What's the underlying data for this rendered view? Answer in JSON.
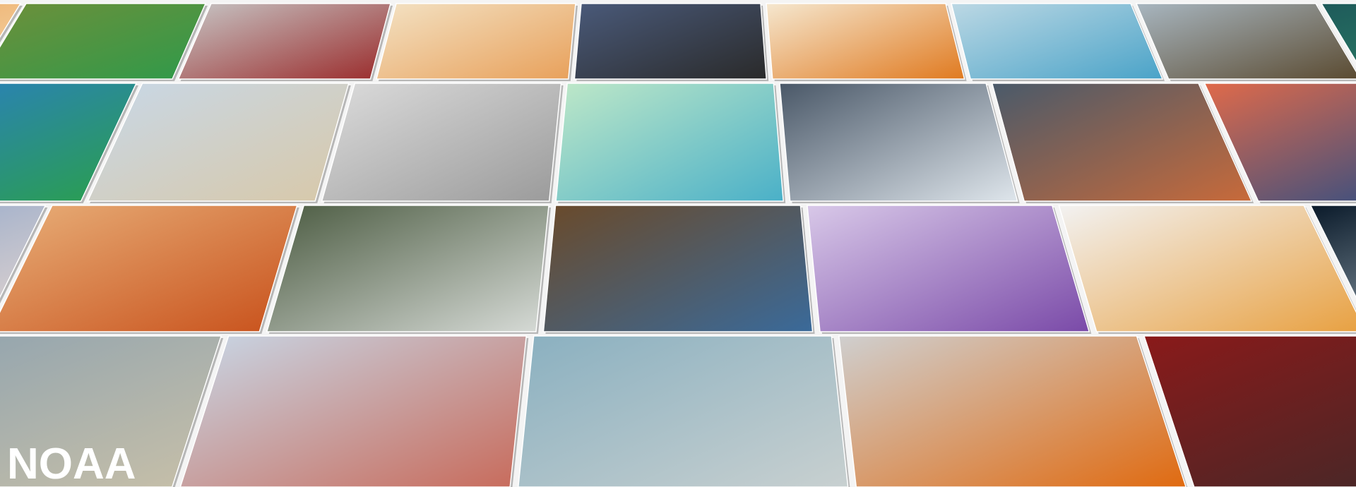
{
  "logo": "NOAA"
}
